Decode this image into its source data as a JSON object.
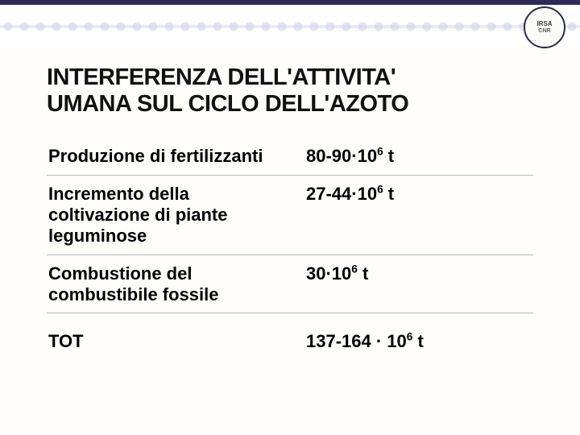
{
  "header": {
    "logo_line1": "IRSA",
    "logo_line2": "CNR"
  },
  "title_line1": "INTERFERENZA DELL'ATTIVITA'",
  "title_line2": "UMANA SUL CICLO DELL'AZOTO",
  "rows": [
    {
      "label": "Produzione di fertilizzanti",
      "value_prefix": "80-90·10",
      "exp": "6",
      "unit": " t"
    },
    {
      "label": "Incremento della coltivazione di piante leguminose",
      "value_prefix": "27-44·10",
      "exp": "6",
      "unit": " t"
    },
    {
      "label": "Combustione del combustibile fossile",
      "value_prefix": "30·10",
      "exp": "6",
      "unit": " t"
    }
  ],
  "total": {
    "label": "TOT",
    "value_prefix": "137-164 · 10",
    "exp": "6",
    "unit": " t"
  },
  "colors": {
    "page_bg": "#fffefb",
    "strip_border": "#2e2a5a",
    "pattern": "#cfd4e8",
    "text": "#000000",
    "divider": "#b8b8b8"
  },
  "fonts": {
    "family": "Verdana",
    "title_size_pt": 22,
    "body_size_pt": 17
  }
}
